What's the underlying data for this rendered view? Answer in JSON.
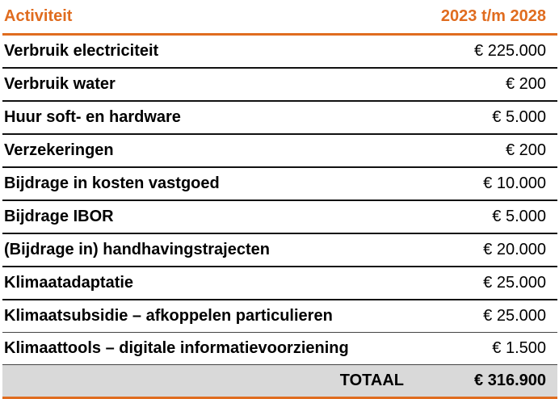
{
  "header": {
    "activity": "Activiteit",
    "period": "2023 t/m 2028"
  },
  "rows": [
    {
      "name": "Verbruik electriciteit",
      "value": "€ 225.000"
    },
    {
      "name": "Verbruik water",
      "value": "€ 200"
    },
    {
      "name": "Huur soft- en hardware",
      "value": "€ 5.000"
    },
    {
      "name": "Verzekeringen",
      "value": "€ 200"
    },
    {
      "name": "Bijdrage in kosten vastgoed",
      "value": "€ 10.000"
    },
    {
      "name": "Bijdrage IBOR",
      "value": "€ 5.000"
    },
    {
      "name": "(Bijdrage in) handhavingstrajecten",
      "value": "€ 20.000"
    },
    {
      "name": "Klimaatadaptatie",
      "value": "€ 25.000"
    },
    {
      "name": "Klimaatsubsidie – afkoppelen particulieren",
      "value": "€ 25.000"
    },
    {
      "name": "Klimaattools – digitale informatievoorziening",
      "value": "€ 1.500"
    }
  ],
  "total": {
    "label": "TOTAAL",
    "value": "€ 316.900"
  },
  "colors": {
    "accent": "#e06c1f",
    "total_bg": "#d9d9d9"
  }
}
